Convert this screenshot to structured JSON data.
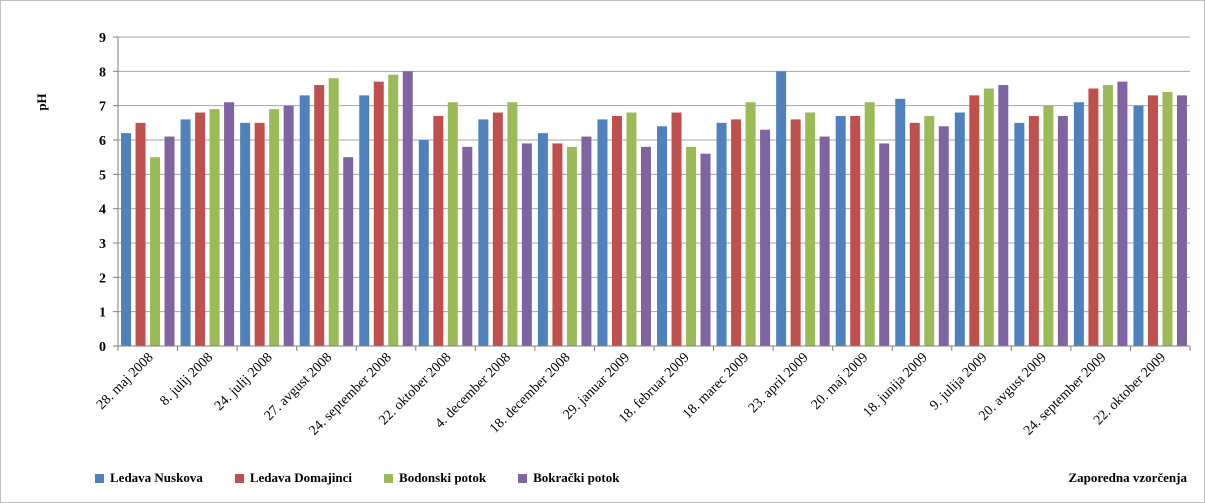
{
  "chart_data": {
    "type": "bar",
    "ylabel": "pH",
    "xlabel": "Zaporedna vzorčenja",
    "ylim": [
      0,
      9
    ],
    "yticks": [
      0,
      1,
      2,
      3,
      4,
      5,
      6,
      7,
      8,
      9
    ],
    "grid": true,
    "legend_position": "bottom-left",
    "categories": [
      "28. maj 2008",
      "8. julij 2008",
      "24. julij 2008",
      "27. avgust 2008",
      "24. september 2008",
      "22. oktober 2008",
      "4. december 2008",
      "18. december 2008",
      "29. januar 2009",
      "18. februar 2009",
      "18. marec 2009",
      "23. april 2009",
      "20. maj 2009",
      "18. junija 2009",
      "9. julija 2009",
      "20. avgust 2009",
      "24. september 2009",
      "22. oktober 2009"
    ],
    "series": [
      {
        "name": "Ledava Nuskova",
        "color": "#4f81bd",
        "values": [
          6.2,
          6.6,
          6.5,
          7.3,
          7.3,
          6.0,
          6.6,
          6.2,
          6.6,
          6.4,
          6.5,
          8.0,
          6.7,
          7.2,
          6.8,
          6.5,
          7.1,
          7.0
        ]
      },
      {
        "name": "Ledava Domajinci",
        "color": "#c0504d",
        "values": [
          6.5,
          6.8,
          6.5,
          7.6,
          7.7,
          6.7,
          6.8,
          5.9,
          6.7,
          6.8,
          6.6,
          6.6,
          6.7,
          6.5,
          7.3,
          6.7,
          7.5,
          7.3
        ]
      },
      {
        "name": "Bodonski potok",
        "color": "#9bbb59",
        "values": [
          5.5,
          6.9,
          6.9,
          7.8,
          7.9,
          7.1,
          7.1,
          5.8,
          6.8,
          5.8,
          7.1,
          6.8,
          7.1,
          6.7,
          7.5,
          7.0,
          7.6,
          7.4
        ]
      },
      {
        "name": "Bokrački potok",
        "color": "#8064a2",
        "values": [
          6.1,
          7.1,
          7.0,
          5.5,
          8.0,
          5.8,
          5.9,
          6.1,
          5.8,
          5.6,
          6.3,
          6.1,
          5.9,
          6.4,
          7.6,
          6.7,
          7.7,
          7.3
        ]
      }
    ]
  }
}
